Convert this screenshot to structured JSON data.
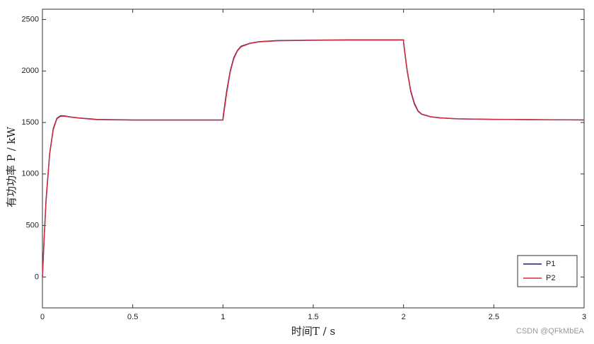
{
  "chart_data": {
    "type": "line",
    "xlabel": "时间T / s",
    "ylabel": "有功功率 P / kW",
    "watermark": "CSDN @QFkMbEA",
    "x": [
      0,
      0.01,
      0.02,
      0.04,
      0.06,
      0.08,
      0.1,
      0.12,
      0.15,
      0.2,
      0.3,
      0.5,
      0.7,
      1.0,
      1.001,
      1.02,
      1.04,
      1.06,
      1.08,
      1.1,
      1.15,
      1.2,
      1.3,
      1.5,
      1.7,
      2.0,
      2.001,
      2.02,
      2.04,
      2.06,
      2.08,
      2.1,
      2.15,
      2.2,
      2.3,
      2.5,
      2.7,
      3.0
    ],
    "series": [
      {
        "name": "P1",
        "color": "#1c1c6e",
        "values": [
          0,
          400,
          750,
          1200,
          1440,
          1540,
          1565,
          1565,
          1555,
          1545,
          1530,
          1525,
          1525,
          1525,
          1560,
          1800,
          2000,
          2130,
          2200,
          2240,
          2270,
          2285,
          2295,
          2300,
          2302,
          2302,
          2260,
          2000,
          1800,
          1680,
          1610,
          1580,
          1555,
          1545,
          1535,
          1530,
          1528,
          1525
        ]
      },
      {
        "name": "P2",
        "color": "#d42a3a",
        "values": [
          0,
          380,
          730,
          1190,
          1430,
          1535,
          1560,
          1562,
          1553,
          1543,
          1528,
          1523,
          1523,
          1523,
          1540,
          1780,
          1990,
          2120,
          2195,
          2235,
          2268,
          2283,
          2293,
          2298,
          2300,
          2300,
          2270,
          2010,
          1810,
          1690,
          1615,
          1583,
          1557,
          1546,
          1536,
          1531,
          1528,
          1524
        ]
      }
    ],
    "xlim": [
      0,
      3
    ],
    "xticks": [
      0,
      0.5,
      1,
      1.5,
      2,
      2.5,
      3
    ],
    "ylim": [
      -300,
      2600
    ],
    "yticks": [
      0,
      500,
      1000,
      1500,
      2000,
      2500
    ],
    "legend": "lower right",
    "grid": false
  }
}
